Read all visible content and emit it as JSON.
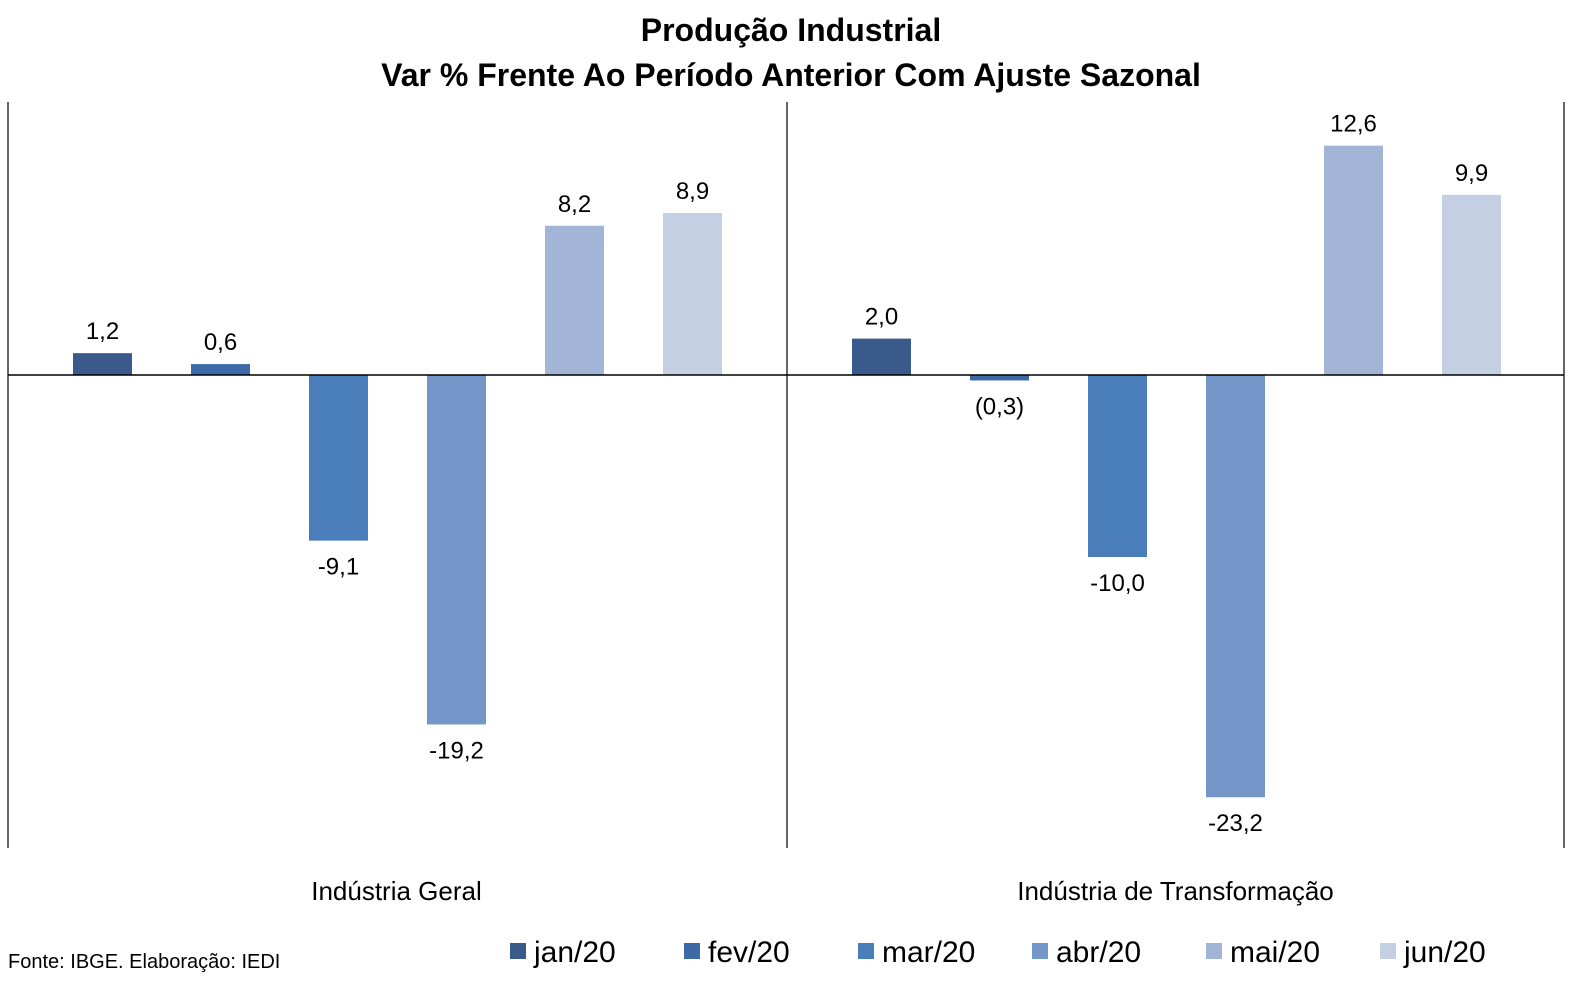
{
  "chart_data": {
    "type": "bar",
    "title": "Produção Industrial",
    "subtitle": "Var % Frente Ao Período Anterior Com Ajuste Sazonal",
    "categories": [
      "Indústria Geral",
      "Indústria de Transformação"
    ],
    "series": [
      {
        "name": "jan/20",
        "color": "#3A5A8C",
        "values": [
          1.2,
          2.0
        ],
        "labels": [
          "1,2",
          "2,0"
        ]
      },
      {
        "name": "fev/20",
        "color": "#3D6AA7",
        "values": [
          0.6,
          -0.3
        ],
        "labels": [
          "0,6",
          "(0,3)"
        ]
      },
      {
        "name": "mar/20",
        "color": "#4A7EBB",
        "values": [
          -9.1,
          -10.0
        ],
        "labels": [
          "-9,1",
          "-10,0"
        ]
      },
      {
        "name": "abr/20",
        "color": "#7596C8",
        "values": [
          -19.2,
          -23.2
        ],
        "labels": [
          "-19,2",
          "-23,2"
        ]
      },
      {
        "name": "mai/20",
        "color": "#A2B5D6",
        "values": [
          8.2,
          12.6
        ],
        "labels": [
          "8,2",
          "12,6"
        ]
      },
      {
        "name": "jun/20",
        "color": "#C4CFE3",
        "values": [
          8.9,
          9.9
        ],
        "labels": [
          "8,9",
          "9,9"
        ]
      }
    ],
    "ylim": [
      -26.0,
      15.0
    ],
    "grid": false,
    "legend_position": "bottom"
  },
  "source_note": "Fonte: IBGE. Elaboração: IEDI"
}
